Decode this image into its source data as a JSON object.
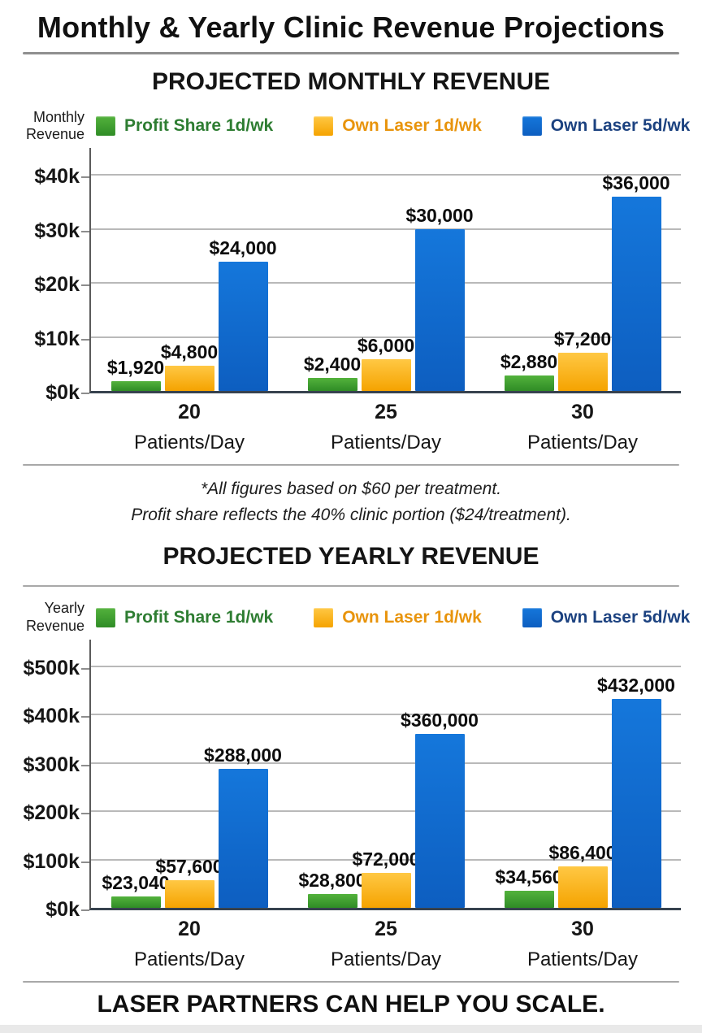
{
  "page_title": "Monthly & Yearly Clinic Revenue Projections",
  "footnote": {
    "line1": "*All figures based on $60 per treatment.",
    "line2": "Profit share reflects the 40% clinic portion ($24/treatment)."
  },
  "footer_tagline": "LASER PARTNERS CAN HELP YOU SCALE.",
  "colors": {
    "green": {
      "light": "#53b23c",
      "dark": "#2f8c26",
      "text": "#2e7d32"
    },
    "orange": {
      "light": "#ffc844",
      "dark": "#f5a300",
      "text": "#e8940c"
    },
    "blue": {
      "light": "#1577db",
      "dark": "#0d5ec0",
      "text": "#1c4280"
    }
  },
  "chart_data": [
    {
      "type": "bar",
      "title": "PROJECTED MONTHLY REVENUE",
      "axis_label": "Monthly\nRevenue",
      "categories": [
        "20",
        "25",
        "30"
      ],
      "category_sublabel": "Patients/Day",
      "series": [
        {
          "name": "Profit Share 1d/wk",
          "color_key": "green",
          "values": [
            1920,
            2400,
            2880
          ],
          "labels": [
            "$1,920",
            "$2,400",
            "$2,880"
          ]
        },
        {
          "name": "Own Laser 1d/wk",
          "color_key": "orange",
          "values": [
            4800,
            6000,
            7200
          ],
          "labels": [
            "$4,800",
            "$6,000",
            "$7,200"
          ]
        },
        {
          "name": "Own Laser 5d/wk",
          "color_key": "blue",
          "values": [
            24000,
            30000,
            36000
          ],
          "labels": [
            "$24,000",
            "$30,000",
            "$36,000"
          ]
        }
      ],
      "ylim": [
        0,
        40000
      ],
      "yticks": [
        {
          "value": 0,
          "label": "$0k"
        },
        {
          "value": 10000,
          "label": "$10k"
        },
        {
          "value": 20000,
          "label": "$20k"
        },
        {
          "value": 30000,
          "label": "$30k"
        },
        {
          "value": 40000,
          "label": "$40k"
        }
      ],
      "grid": true,
      "legend_position": "top"
    },
    {
      "type": "bar",
      "title": "PROJECTED YEARLY REVENUE",
      "axis_label": "Yearly\nRevenue",
      "categories": [
        "20",
        "25",
        "30"
      ],
      "category_sublabel": "Patients/Day",
      "series": [
        {
          "name": "Profit Share 1d/wk",
          "color_key": "green",
          "values": [
            23040,
            28800,
            34560
          ],
          "labels": [
            "$23,040",
            "$28,800",
            "$34,560"
          ]
        },
        {
          "name": "Own Laser 1d/wk",
          "color_key": "orange",
          "values": [
            57600,
            72000,
            86400
          ],
          "labels": [
            "$57,600",
            "$72,000",
            "$86,400"
          ]
        },
        {
          "name": "Own Laser 5d/wk",
          "color_key": "blue",
          "values": [
            288000,
            360000,
            432000
          ],
          "labels": [
            "$288,000",
            "$360,000",
            "$432,000"
          ]
        }
      ],
      "ylim": [
        0,
        500000
      ],
      "yticks": [
        {
          "value": 0,
          "label": "$0k"
        },
        {
          "value": 100000,
          "label": "$100k"
        },
        {
          "value": 200000,
          "label": "$200k"
        },
        {
          "value": 300000,
          "label": "$300k"
        },
        {
          "value": 400000,
          "label": "$400k"
        },
        {
          "value": 500000,
          "label": "$500k"
        }
      ],
      "grid": true,
      "legend_position": "top"
    }
  ]
}
